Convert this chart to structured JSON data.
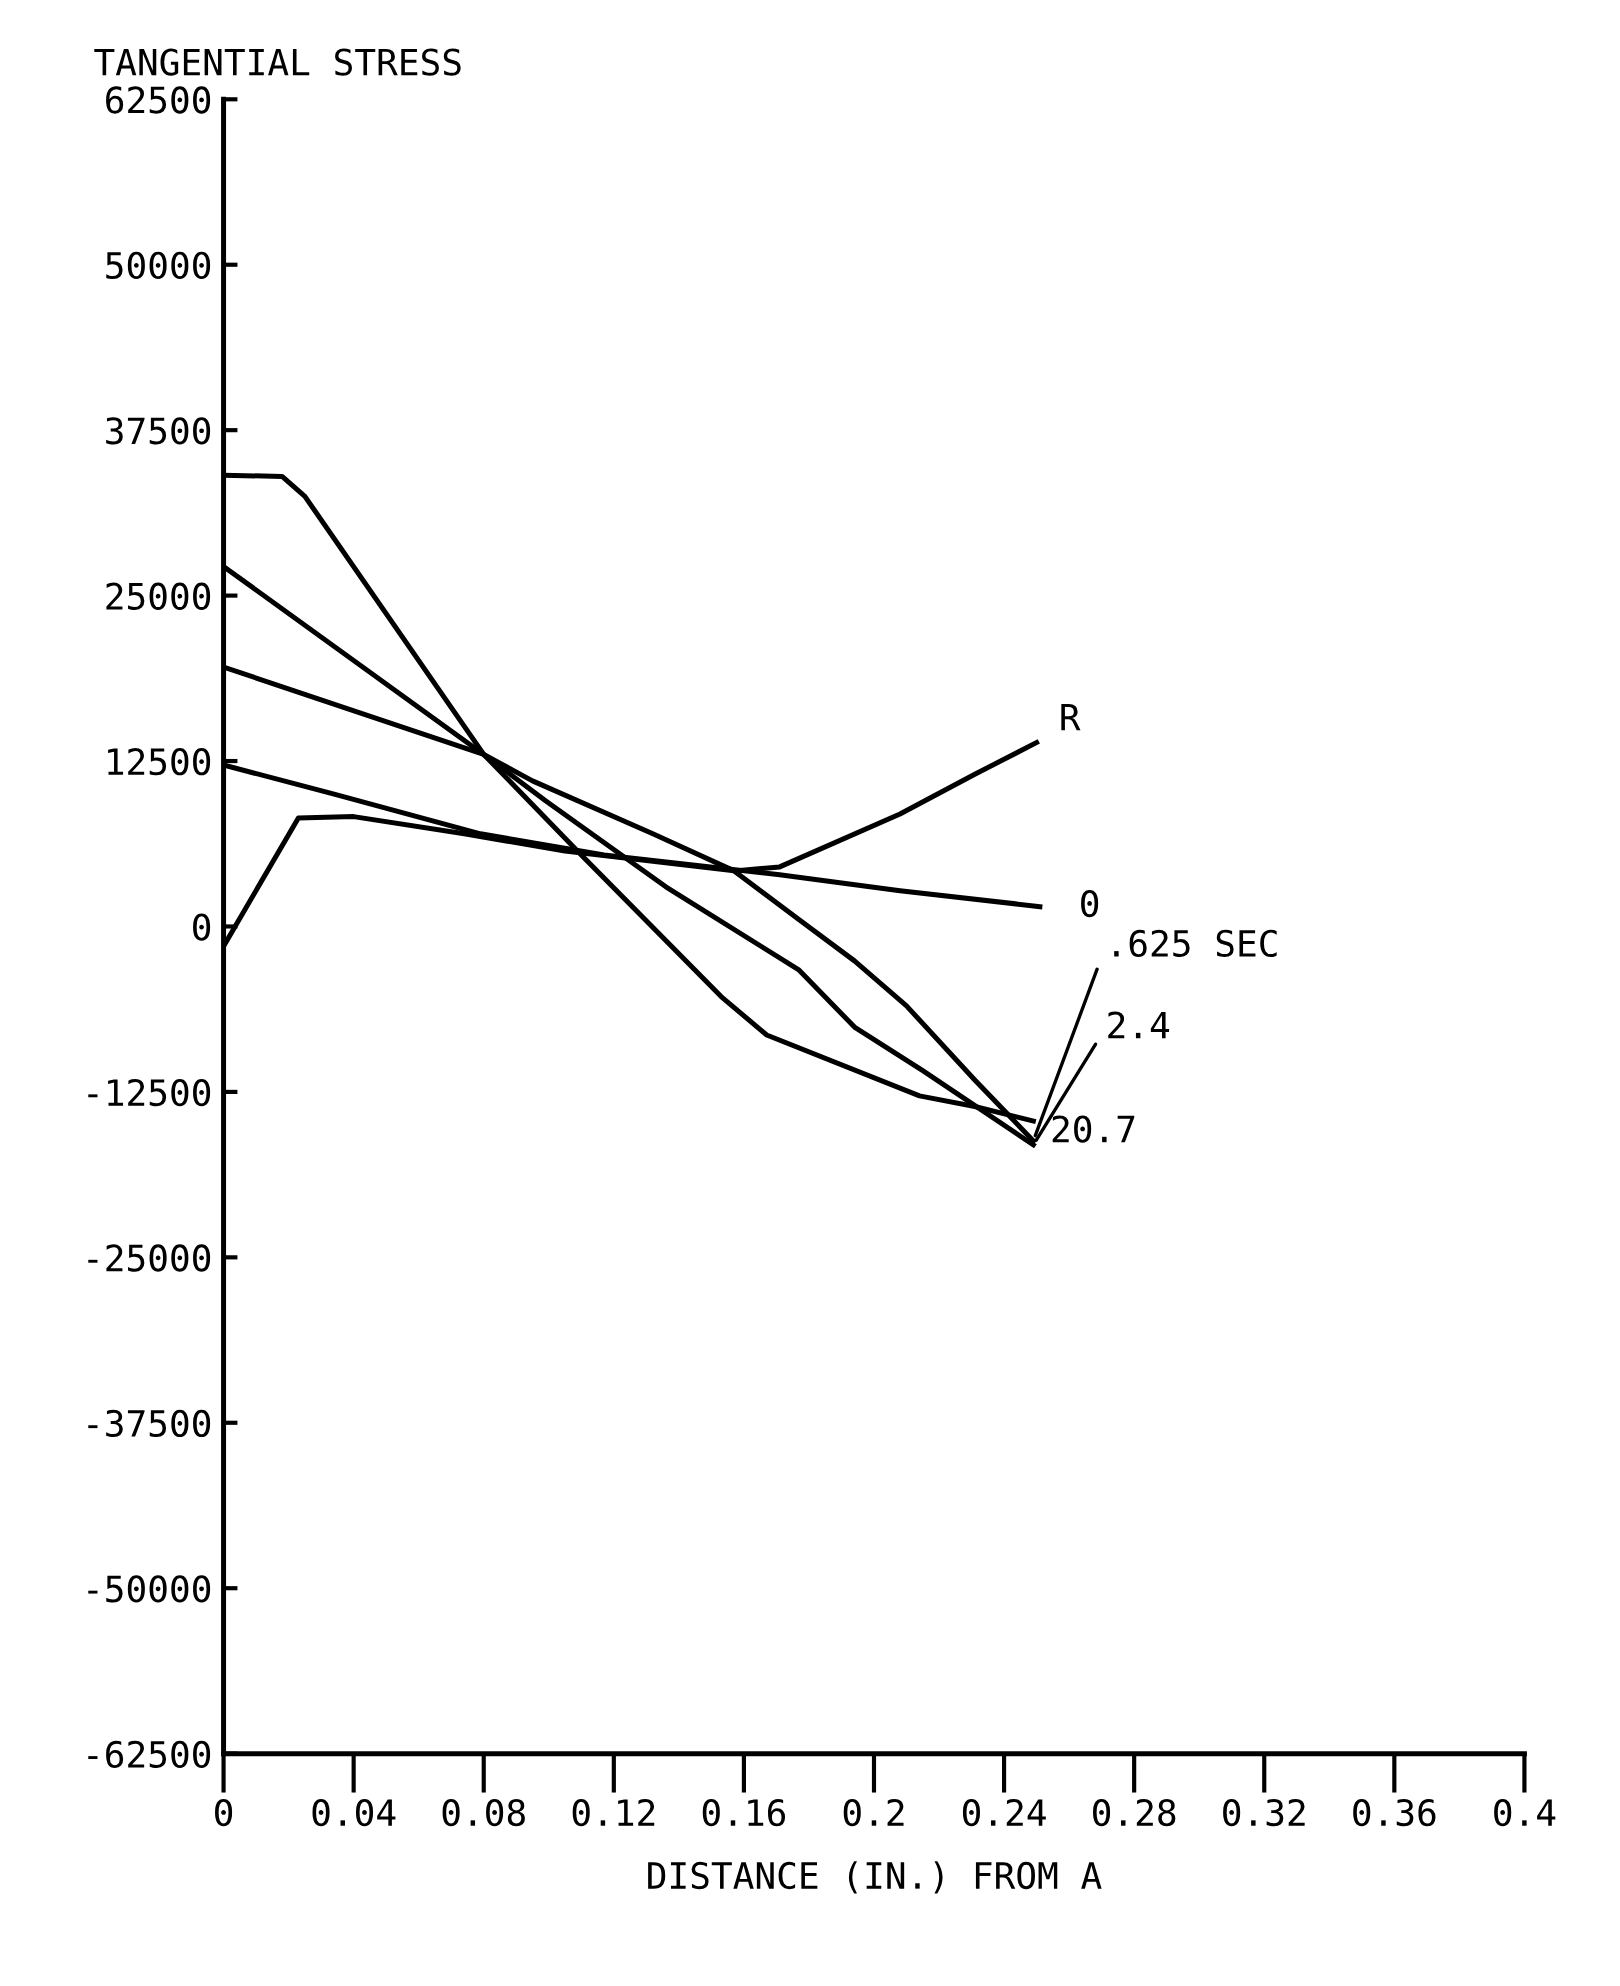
{
  "chart_data": {
    "type": "line",
    "ylabel": "TANGENTIAL STRESS",
    "xlabel": "DISTANCE (IN.) FROM A",
    "xlim": [
      0,
      0.4
    ],
    "xticks": [
      0,
      0.04,
      0.08,
      0.12,
      0.16,
      0.2,
      0.24,
      0.28,
      0.32,
      0.36,
      0.4
    ],
    "ylim": [
      -62500,
      62500
    ],
    "yticks": [
      62500,
      50000,
      37500,
      25000,
      12500,
      0,
      -12500,
      -25000,
      -37500,
      -50000,
      -62500
    ],
    "grid": false,
    "legend": false,
    "marker": "none",
    "line_style": "solid",
    "series": [
      {
        "name": "R",
        "color": "#000000",
        "x": [
          0,
          0.023,
          0.04,
          0.074,
          0.105,
          0.157,
          0.171,
          0.208,
          0.231,
          0.25
        ],
        "values": [
          -1500,
          8200,
          8300,
          7000,
          5700,
          4200,
          4500,
          8500,
          11500,
          13900
        ]
      },
      {
        "name": "0",
        "color": "#000000",
        "x": [
          0,
          0.034,
          0.079,
          0.117,
          0.171,
          0.208,
          0.251
        ],
        "values": [
          12200,
          10000,
          7000,
          5400,
          3900,
          2700,
          1500
        ]
      },
      {
        "name": ".625 SEC",
        "color": "#000000",
        "x": [
          0,
          0.08,
          0.095,
          0.132,
          0.157,
          0.177,
          0.194,
          0.21,
          0.231,
          0.249
        ],
        "values": [
          19600,
          13000,
          11000,
          7000,
          4200,
          500,
          -2600,
          -6000,
          -11600,
          -16200
        ]
      },
      {
        "name": "2.4",
        "color": "#000000",
        "x": [
          0,
          0.08,
          0.099,
          0.136,
          0.177,
          0.194,
          0.215,
          0.249
        ],
        "values": [
          27200,
          13000,
          9500,
          3000,
          -3300,
          -7600,
          -10900,
          -16500
        ]
      },
      {
        "name": "20.7",
        "color": "#000000",
        "x": [
          0,
          0.018,
          0.025,
          0.08,
          0.11,
          0.153,
          0.167,
          0.214,
          0.231,
          0.249
        ],
        "values": [
          34100,
          34000,
          32500,
          13000,
          5400,
          -5300,
          -8200,
          -12800,
          -13600,
          -14700
        ]
      }
    ]
  }
}
